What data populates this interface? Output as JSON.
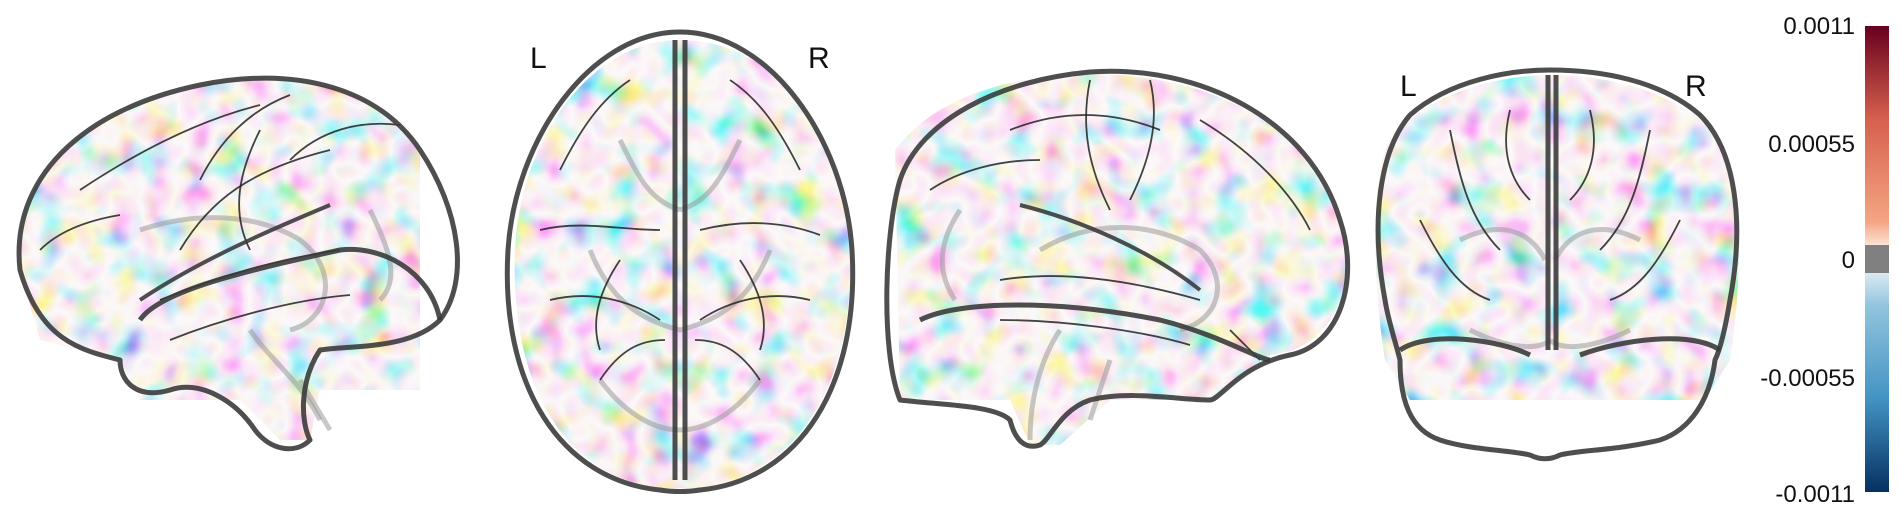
{
  "figure": {
    "views": [
      {
        "name": "left-sagittal",
        "labels": []
      },
      {
        "name": "axial",
        "labels": [
          "L",
          "R"
        ]
      },
      {
        "name": "right-sagittal",
        "labels": []
      },
      {
        "name": "coronal",
        "labels": [
          "L",
          "R"
        ]
      }
    ]
  },
  "colorbar": {
    "colormap": "red-white-blue diverging",
    "colors": {
      "max": "#67001f",
      "high": "#d6604d",
      "mid_high": "#f4a582",
      "zero_band": "#808080",
      "mid_low": "#92c5de",
      "low": "#4393c3",
      "min": "#053061"
    },
    "vmin": -0.0011,
    "vmax": 0.0011,
    "ticks": [
      "0.0011",
      "0.00055",
      "0",
      "-0.00055",
      "-0.0011"
    ]
  }
}
